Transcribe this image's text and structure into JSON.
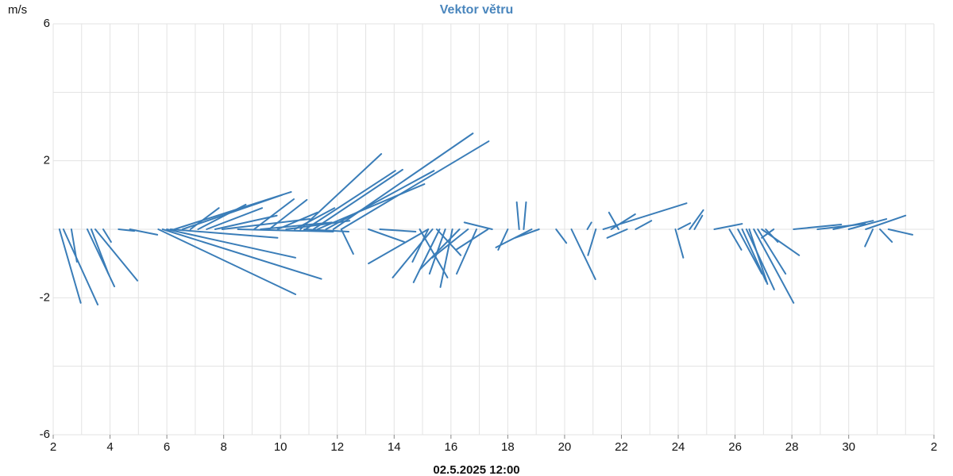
{
  "chart_data": {
    "type": "vector",
    "title": "Vektor větru",
    "y_label": "m/s",
    "x_label": "02.5.2025 12:00",
    "color": "#3a7db8",
    "title_color": "#4a86bd",
    "grid": true,
    "ylim": [
      -6,
      6
    ],
    "yticks": [
      -6,
      -2,
      2,
      6
    ],
    "ygrid": [
      -6,
      -4,
      -2,
      0,
      2,
      4,
      6
    ],
    "xlim": [
      0,
      31
    ],
    "xticks": [
      {
        "value": 0,
        "label": "2"
      },
      {
        "value": 2,
        "label": "4"
      },
      {
        "value": 4,
        "label": "6"
      },
      {
        "value": 6,
        "label": "8"
      },
      {
        "value": 8,
        "label": "10"
      },
      {
        "value": 10,
        "label": "12"
      },
      {
        "value": 12,
        "label": "14"
      },
      {
        "value": 14,
        "label": "16"
      },
      {
        "value": 16,
        "label": "18"
      },
      {
        "value": 18,
        "label": "20"
      },
      {
        "value": 20,
        "label": "22"
      },
      {
        "value": 22,
        "label": "24"
      },
      {
        "value": 24,
        "label": "26"
      },
      {
        "value": 26,
        "label": "28"
      },
      {
        "value": 28,
        "label": "30"
      },
      {
        "value": 31,
        "label": "2"
      }
    ],
    "xgrid": [
      0,
      1,
      2,
      3,
      4,
      5,
      6,
      7,
      8,
      9,
      10,
      11,
      12,
      13,
      14,
      15,
      16,
      17,
      18,
      19,
      20,
      21,
      22,
      23,
      24,
      25,
      26,
      27,
      28,
      29,
      30,
      31
    ],
    "x": [
      0.22,
      0.36,
      0.64,
      1.2,
      1.34,
      1.48,
      1.76,
      2.3,
      2.7,
      3.7,
      3.85,
      4.0,
      4.13,
      4.27,
      4.55,
      4.83,
      5.1,
      5.4,
      5.7,
      5.95,
      6.5,
      7.07,
      7.3,
      7.6,
      7.9,
      8.2,
      8.5,
      8.7,
      8.88,
      9.16,
      9.3,
      9.6,
      9.86,
      10.14,
      8.83,
      10.14,
      11.1,
      11.5,
      13.2,
      13.35,
      13.2,
      12.9,
      13.5,
      13.6,
      13.8,
      14.05,
      14.3,
      14.6,
      14.9,
      15.3,
      15.45,
      16.0,
      16.4,
      16.56,
      16.84,
      17.1,
      17.7,
      18.24,
      18.8,
      19.1,
      19.36,
      19.64,
      19.9,
      20.2,
      20.5,
      21.9,
      22.0,
      22.4,
      22.57,
      23.27,
      23.8,
      24.1,
      24.25,
      24.4,
      24.5,
      24.66,
      24.8,
      24.94,
      25.08,
      25.36,
      26.06,
      26.9,
      27.46,
      28.0,
      28.6,
      28.85,
      29.1,
      29.4
    ],
    "u": [
      0.62,
      1.0,
      0.16,
      0.79,
      0.5,
      1.23,
      0.23,
      0.46,
      0.8,
      4.0,
      4.63,
      3.75,
      3.12,
      3.4,
      2.9,
      0.83,
      1.39,
      1.62,
      1.8,
      2.55,
      2.78,
      1.16,
      2.08,
      1.1,
      1.16,
      1.85,
      1.16,
      2.36,
      2.62,
      2.6,
      3.12,
      3.15,
      4.07,
      4.3,
      1.3,
      0.35,
      1.04,
      1.04,
      -1.74,
      -1.16,
      -0.46,
      0.81,
      0.7,
      -0.76,
      -0.46,
      -0.35,
      -1.16,
      -1.04,
      -0.58,
      -0.93,
      -0.81,
      -0.28,
      -0.07,
      0.07,
      -1.04,
      -0.7,
      0.3,
      0.7,
      0.12,
      -0.23,
      2.43,
      0.7,
      -0.28,
      -0.58,
      0.46,
      0.23,
      0.35,
      0.4,
      0.23,
      0.81,
      0.35,
      0.7,
      0.7,
      0.81,
      0.53,
      1.16,
      0.81,
      1.09,
      0.35,
      -0.35,
      1.39,
      1.39,
      1.16,
      1.1,
      1.16,
      -0.23,
      0.35,
      0.7
    ],
    "v": [
      -2.15,
      -2.2,
      -0.95,
      -1.67,
      -1.3,
      -1.5,
      -0.37,
      -0.05,
      -0.16,
      -1.9,
      -1.45,
      -0.83,
      -0.25,
      1.09,
      1.0,
      0.62,
      0.72,
      0.62,
      0.4,
      0.3,
      -0.07,
      0.88,
      0.2,
      0.86,
      0.49,
      0.25,
      0.62,
      2.2,
      1.71,
      1.74,
      1.32,
      1.71,
      2.8,
      2.57,
      -0.07,
      -0.72,
      -0.37,
      -0.07,
      -1.0,
      -1.41,
      -0.95,
      -1.41,
      -0.76,
      -1.55,
      -1.3,
      -1.69,
      -1.18,
      -0.83,
      -1.3,
      -0.6,
      0.2,
      -0.6,
      0.79,
      0.79,
      -0.53,
      -0.25,
      -0.4,
      -1.46,
      0.2,
      -0.76,
      0.76,
      0.44,
      0.49,
      -0.25,
      0.25,
      -0.83,
      0.18,
      0.56,
      0.4,
      0.16,
      -0.6,
      -1.3,
      -1.53,
      -1.76,
      -1.6,
      -2.15,
      -1.3,
      -0.76,
      -0.37,
      -0.25,
      0.14,
      0.16,
      0.25,
      0.3,
      0.4,
      -0.5,
      -0.37,
      -0.16
    ]
  }
}
